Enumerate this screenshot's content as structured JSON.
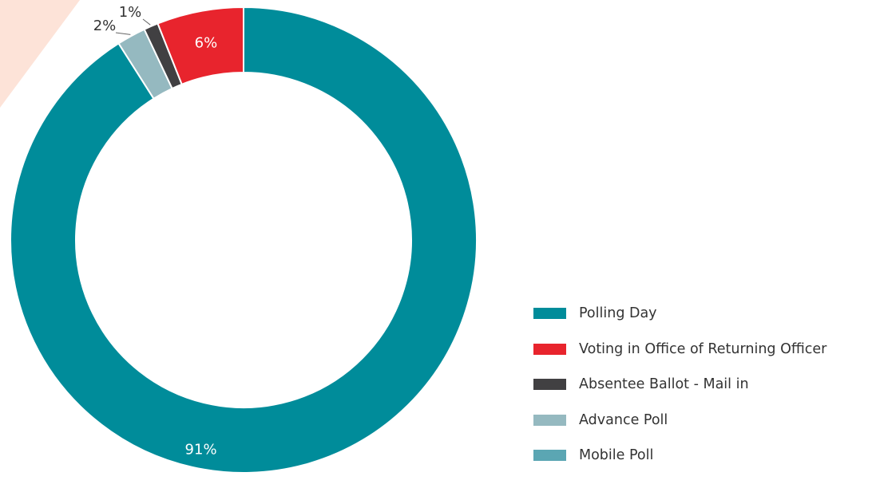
{
  "chart_data": {
    "type": "pie",
    "style": "donut",
    "legend_position": "right",
    "series": [
      {
        "name": "Polling Day",
        "value": 91,
        "label": "91%",
        "color": "#008c9a"
      },
      {
        "name": "Voting in Office of Returning Officer",
        "value": 6,
        "label": "6%",
        "color": "#e8242d"
      },
      {
        "name": "Absentee Ballot - Mail in",
        "value": 1,
        "label": "1%",
        "color": "#414042"
      },
      {
        "name": "Advance Poll",
        "value": 2,
        "label": "2%",
        "color": "#95b9c0"
      },
      {
        "name": "Mobile Poll",
        "value": 0,
        "label": "",
        "color": "#5ba6b3"
      }
    ]
  },
  "decor": {
    "corner_color": "#fde3d8"
  }
}
